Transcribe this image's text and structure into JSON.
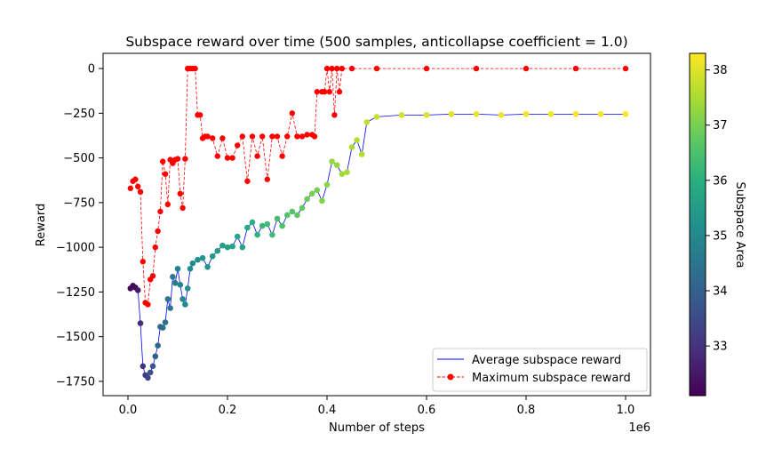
{
  "chart_data": {
    "type": "line",
    "title": "Subspace reward over time (500 samples, anticollapse coefficient = 1.0)",
    "xlabel": "Number of steps",
    "ylabel": "Reward",
    "x_offset_label": "1e6",
    "xlim": [
      -0.05,
      1.05
    ],
    "ylim": [
      -1830,
      85
    ],
    "x_ticks": [
      0.0,
      0.2,
      0.4,
      0.6,
      0.8,
      1.0
    ],
    "x_tick_labels": [
      "0.0",
      "0.2",
      "0.4",
      "0.6",
      "0.8",
      "1.0"
    ],
    "y_ticks": [
      0,
      -250,
      -500,
      -750,
      -1000,
      -1250,
      -1500,
      -1750
    ],
    "y_tick_labels": [
      "0",
      "−250",
      "−500",
      "−750",
      "−1000",
      "−1250",
      "−1500",
      "−1750"
    ],
    "grid": false,
    "legend_position": "lower right",
    "colorbar": {
      "label": "Subspace Area",
      "min": 32.1,
      "max": 38.3,
      "ticks": [
        33,
        34,
        35,
        36,
        37,
        38
      ],
      "tick_labels": [
        "33",
        "34",
        "35",
        "36",
        "37",
        "38"
      ],
      "colormap": "viridis"
    },
    "series": [
      {
        "name": "Average subspace reward",
        "style": "line",
        "color": "#0000ff",
        "colored_by": "Subspace Area",
        "x": [
          0.005,
          0.01,
          0.015,
          0.02,
          0.025,
          0.03,
          0.035,
          0.04,
          0.045,
          0.05,
          0.055,
          0.06,
          0.065,
          0.07,
          0.075,
          0.08,
          0.085,
          0.09,
          0.095,
          0.1,
          0.105,
          0.11,
          0.115,
          0.12,
          0.125,
          0.13,
          0.14,
          0.15,
          0.16,
          0.17,
          0.18,
          0.19,
          0.2,
          0.21,
          0.22,
          0.23,
          0.24,
          0.25,
          0.26,
          0.27,
          0.28,
          0.29,
          0.3,
          0.31,
          0.32,
          0.33,
          0.34,
          0.35,
          0.36,
          0.37,
          0.38,
          0.39,
          0.4,
          0.41,
          0.42,
          0.43,
          0.44,
          0.45,
          0.46,
          0.47,
          0.48,
          0.5,
          0.55,
          0.6,
          0.65,
          0.7,
          0.75,
          0.8,
          0.85,
          0.9,
          0.95,
          1.0
        ],
        "y": [
          -1230,
          -1215,
          -1225,
          -1240,
          -1425,
          -1665,
          -1715,
          -1730,
          -1700,
          -1665,
          -1610,
          -1550,
          -1445,
          -1450,
          -1420,
          -1290,
          -1340,
          -1165,
          -1200,
          -1120,
          -1210,
          -1290,
          -1320,
          -1230,
          -1120,
          -1090,
          -1070,
          -1060,
          -1110,
          -1050,
          -1020,
          -990,
          -1000,
          -995,
          -940,
          -1000,
          -890,
          -860,
          -930,
          -880,
          -870,
          -930,
          -840,
          -880,
          -820,
          -800,
          -820,
          -780,
          -730,
          -700,
          -680,
          -740,
          -650,
          -520,
          -540,
          -590,
          -580,
          -440,
          -400,
          -480,
          -300,
          -270,
          -260,
          -260,
          -255,
          -255,
          -260,
          -255,
          -255,
          -255,
          -255,
          -255
        ],
        "area": [
          32.2,
          32.2,
          32.3,
          32.5,
          32.9,
          33.0,
          33.2,
          33.4,
          33.6,
          33.8,
          34.0,
          34.1,
          34.2,
          34.3,
          34.4,
          34.5,
          34.5,
          34.6,
          34.7,
          34.8,
          34.9,
          35.0,
          35.0,
          35.1,
          35.1,
          35.1,
          35.2,
          35.3,
          35.3,
          35.4,
          35.5,
          35.5,
          35.6,
          35.7,
          35.8,
          35.8,
          35.9,
          36.0,
          36.1,
          36.2,
          36.3,
          36.3,
          36.4,
          36.5,
          36.6,
          36.6,
          36.7,
          36.8,
          36.9,
          37.0,
          37.0,
          37.1,
          37.2,
          37.3,
          37.3,
          37.4,
          37.5,
          37.5,
          37.6,
          37.6,
          37.7,
          37.8,
          37.9,
          38.0,
          38.05,
          38.1,
          38.15,
          38.2,
          38.2,
          38.25,
          38.25,
          38.3
        ]
      },
      {
        "name": "Maximum subspace reward",
        "style": "dashed line with circle markers",
        "color": "#ff0000",
        "x": [
          0.005,
          0.01,
          0.015,
          0.02,
          0.025,
          0.03,
          0.035,
          0.04,
          0.045,
          0.05,
          0.055,
          0.06,
          0.065,
          0.07,
          0.075,
          0.08,
          0.085,
          0.09,
          0.095,
          0.1,
          0.105,
          0.11,
          0.115,
          0.12,
          0.125,
          0.13,
          0.135,
          0.14,
          0.145,
          0.15,
          0.155,
          0.16,
          0.17,
          0.18,
          0.19,
          0.2,
          0.21,
          0.22,
          0.23,
          0.24,
          0.25,
          0.26,
          0.27,
          0.28,
          0.29,
          0.3,
          0.31,
          0.32,
          0.33,
          0.34,
          0.35,
          0.36,
          0.37,
          0.375,
          0.38,
          0.39,
          0.395,
          0.4,
          0.405,
          0.41,
          0.415,
          0.42,
          0.425,
          0.43,
          0.45,
          0.5,
          0.6,
          0.7,
          0.8,
          0.9,
          1.0
        ],
        "y": [
          -670,
          -630,
          -620,
          -660,
          -690,
          -1080,
          -1310,
          -1320,
          -1180,
          -1160,
          -1000,
          -910,
          -800,
          -520,
          -590,
          -760,
          -510,
          -530,
          -510,
          -505,
          -700,
          -780,
          -505,
          0,
          0,
          0,
          0,
          -260,
          -260,
          -390,
          -380,
          -380,
          -390,
          -490,
          -390,
          -500,
          -500,
          -430,
          -380,
          -630,
          -380,
          -490,
          -380,
          -620,
          -380,
          -380,
          -490,
          -380,
          -250,
          -380,
          -380,
          -370,
          -370,
          -380,
          -130,
          -130,
          -130,
          0,
          -130,
          0,
          -260,
          0,
          -130,
          0,
          0,
          0,
          0,
          0,
          0,
          0,
          0
        ]
      }
    ]
  }
}
